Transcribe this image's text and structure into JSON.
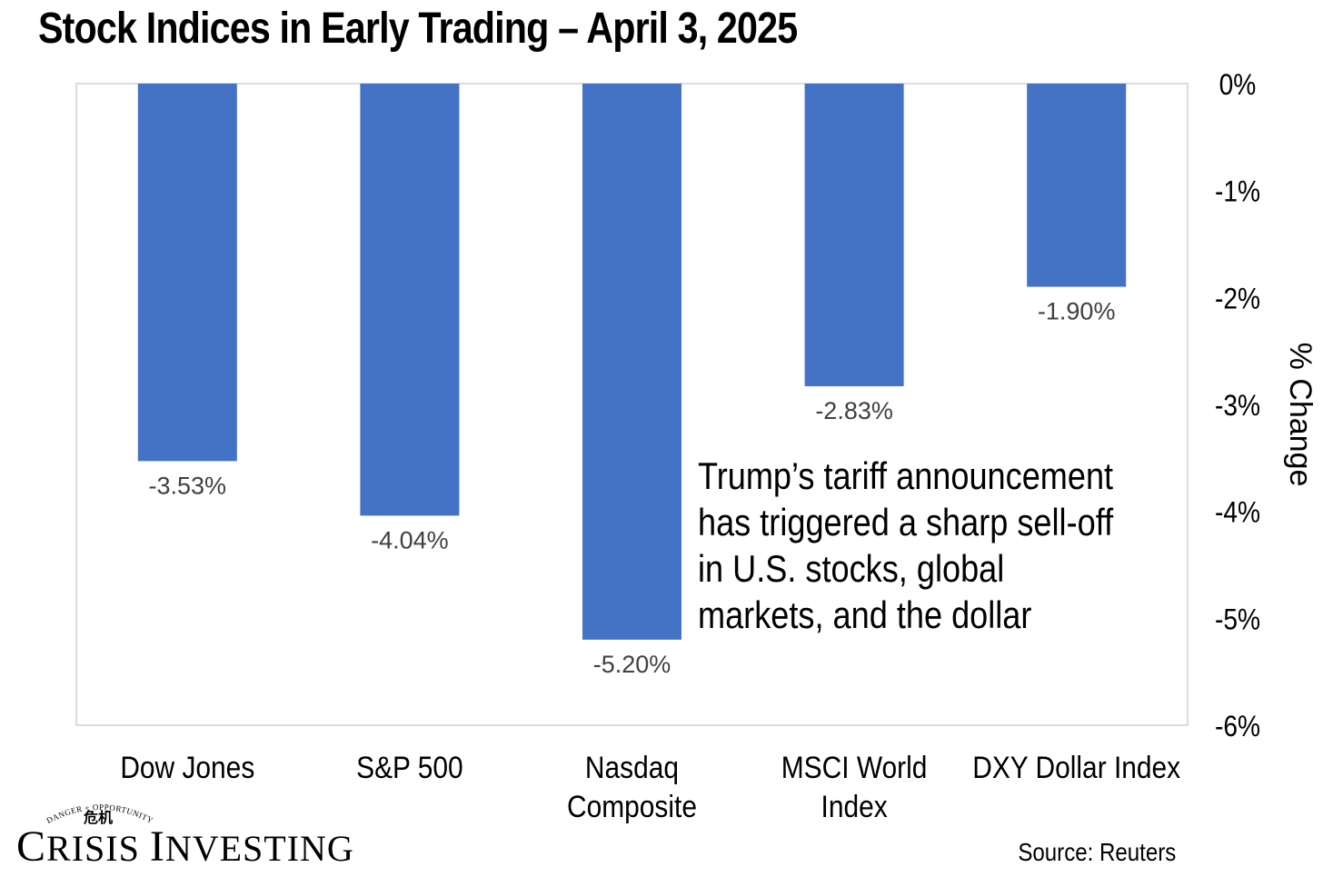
{
  "chart_data": {
    "type": "bar",
    "title": "Stock Indices in Early Trading – April 3, 2025",
    "categories": [
      [
        "Dow Jones"
      ],
      [
        "S&P 500"
      ],
      [
        "Nasdaq",
        "Composite"
      ],
      [
        "MSCI World",
        "Index"
      ],
      [
        "DXY Dollar Index"
      ]
    ],
    "values": [
      -3.53,
      -4.04,
      -5.2,
      -2.83,
      -1.9
    ],
    "data_labels": [
      "-3.53%",
      "-4.04%",
      "-5.20%",
      "-2.83%",
      "-1.90%"
    ],
    "ylabel": "% Change",
    "ylim": [
      -6,
      0
    ],
    "y_ticks": [
      0,
      -1,
      -2,
      -3,
      -4,
      -5,
      -6
    ],
    "y_tick_labels": [
      "0%",
      "-1%",
      "-2%",
      "-3%",
      "-4%",
      "-5%",
      "-6%"
    ],
    "y_axis_side": "right",
    "bar_color": "#4472C4",
    "annotation": "Trump’s tariff announcement has triggered a sharp sell-off in U.S. stocks, global markets, and the dollar"
  },
  "logo": {
    "tagline": "DANGER + OPPORTUNITY",
    "glyphs": "危机",
    "name": "Crisis Investing"
  },
  "source": "Source: Reuters"
}
